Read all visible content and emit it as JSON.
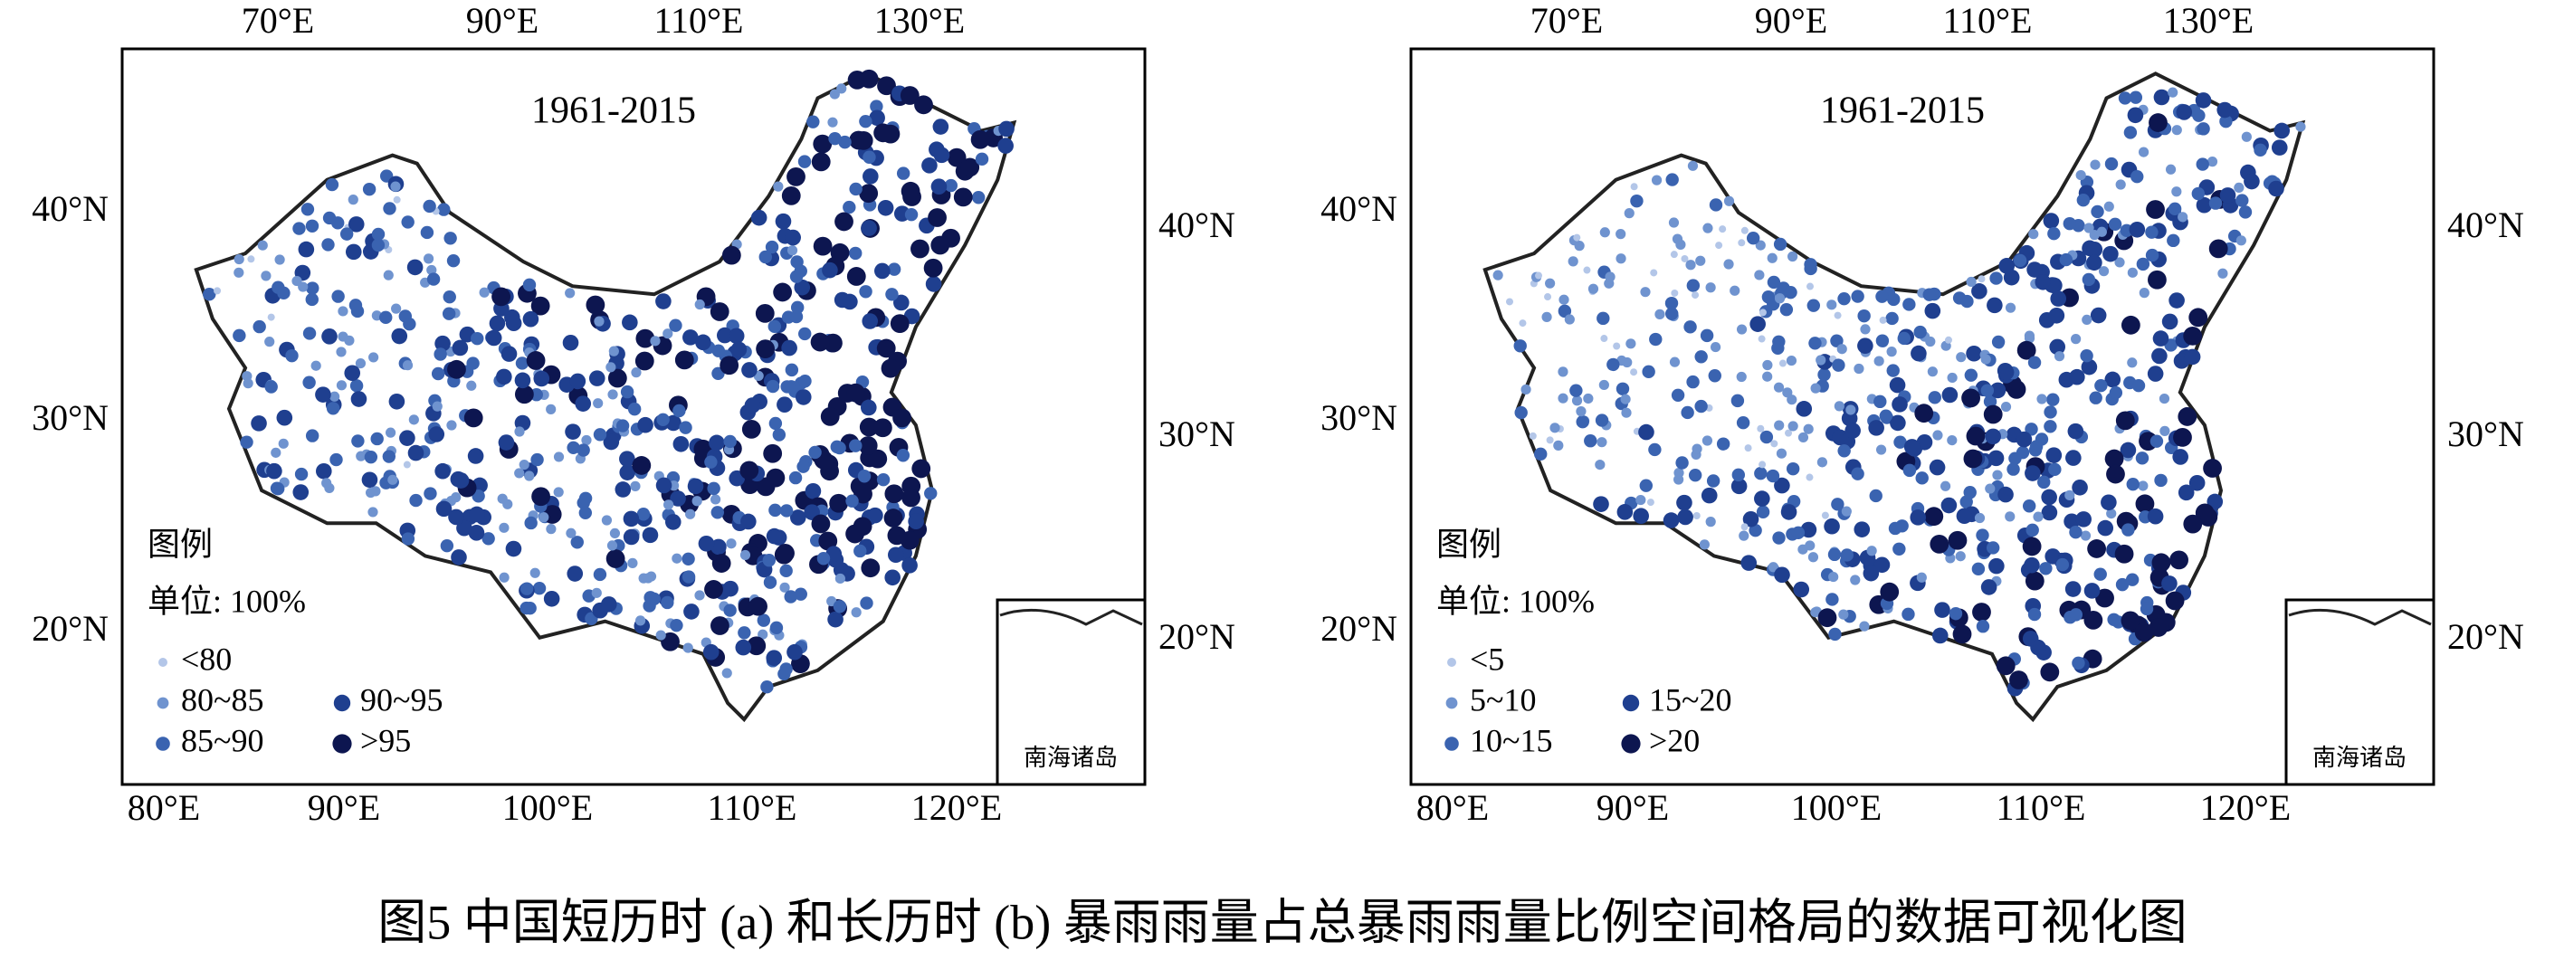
{
  "panels": [
    {
      "period": "1961-2015",
      "top_lon_labels": [
        "70°E",
        "90°E",
        "110°E",
        "130°E"
      ],
      "bottom_lon_labels": [
        "80°E",
        "90°E",
        "100°E",
        "110°E",
        "120°E"
      ],
      "left_lat_labels": [
        "40°N",
        "30°N",
        "20°N"
      ],
      "right_lat_labels": [
        "40°N",
        "30°N",
        "20°N"
      ],
      "legend": {
        "title": "图例",
        "unit": "单位: 100%",
        "items": [
          {
            "label": "<80",
            "color": "#b3c6e8"
          },
          {
            "label": "80~85",
            "color": "#6f93cf"
          },
          {
            "label": "85~90",
            "color": "#3a63b0"
          },
          {
            "label": "90~95",
            "color": "#1f3f8f"
          },
          {
            "label": ">95",
            "color": "#0d1650"
          }
        ]
      },
      "inset_label": "南海诸岛"
    },
    {
      "period": "1961-2015",
      "top_lon_labels": [
        "70°E",
        "90°E",
        "110°E",
        "130°E"
      ],
      "bottom_lon_labels": [
        "80°E",
        "90°E",
        "100°E",
        "110°E",
        "120°E"
      ],
      "left_lat_labels": [
        "40°N",
        "30°N",
        "20°N"
      ],
      "right_lat_labels": [
        "40°N",
        "30°N",
        "20°N"
      ],
      "legend": {
        "title": "图例",
        "unit": "单位: 100%",
        "items": [
          {
            "label": "<5",
            "color": "#b3c6e8"
          },
          {
            "label": "5~10",
            "color": "#6f93cf"
          },
          {
            "label": "10~15",
            "color": "#3a63b0"
          },
          {
            "label": "15~20",
            "color": "#1f3f8f"
          },
          {
            "label": ">20",
            "color": "#0d1650"
          }
        ]
      },
      "inset_label": "南海诸岛"
    }
  ],
  "caption": "图5 中国短历时 (a) 和长历时 (b) 暴雨雨量占总暴雨雨量比例空间格局的数据可视化图"
}
